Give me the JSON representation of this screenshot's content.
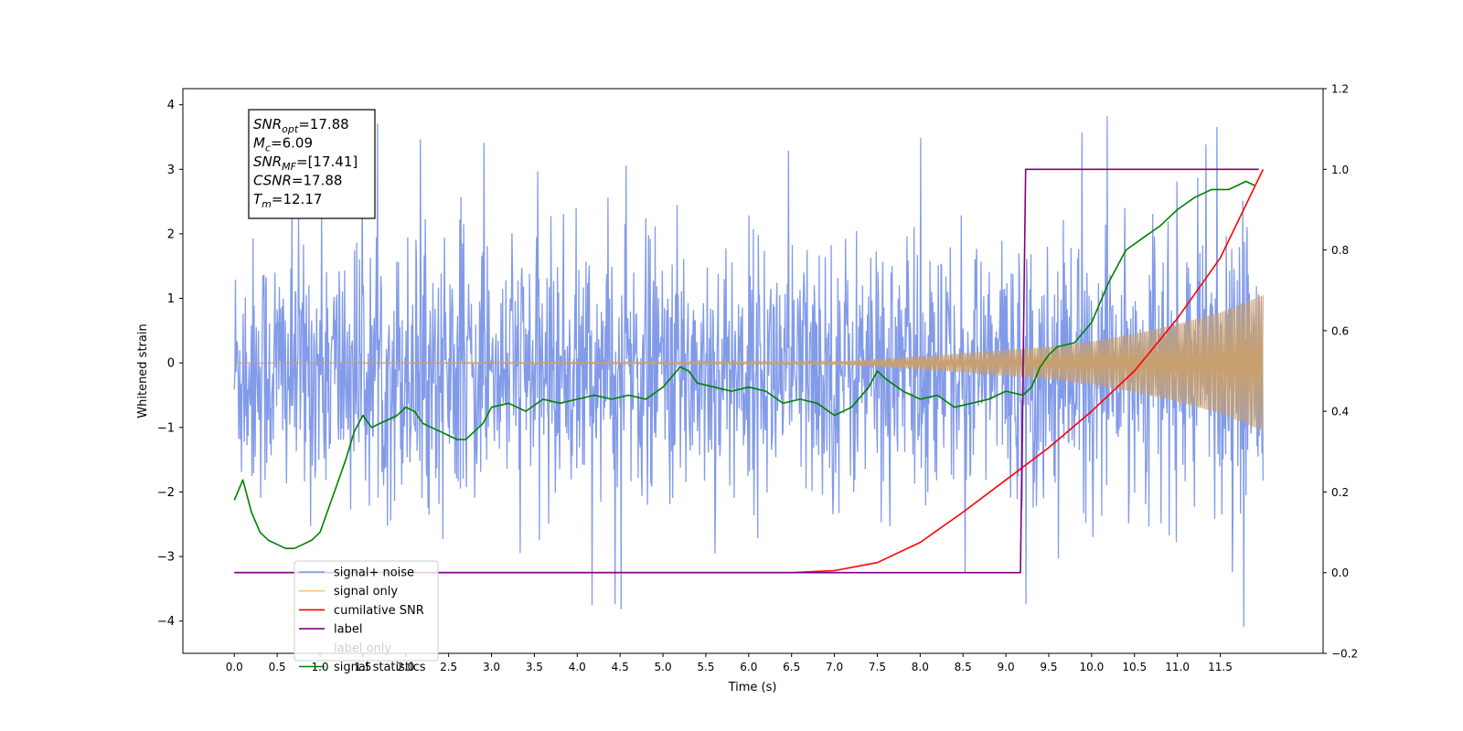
{
  "chart_data": {
    "type": "line",
    "title": "",
    "xlabel": "Time (s)",
    "ylabel": "Whitened strain",
    "y2label": "",
    "xlim": [
      -0.6,
      12.7
    ],
    "ylim": [
      -4.5,
      4.25
    ],
    "y2lim": [
      -0.2,
      1.2
    ],
    "xticks": [
      "0.0",
      "0.5",
      "1.0",
      "1.5",
      "2.0",
      "2.5",
      "3.0",
      "3.5",
      "4.0",
      "4.5",
      "5.0",
      "5.5",
      "6.0",
      "6.5",
      "7.0",
      "7.5",
      "8.0",
      "8.5",
      "9.0",
      "9.5",
      "10.0",
      "10.5",
      "11.0",
      "11.5"
    ],
    "yticks": [
      "4",
      "3",
      "2",
      "1",
      "0",
      "−1",
      "−2",
      "−3",
      "−4"
    ],
    "y2ticks": [
      "1.2",
      "1.0",
      "0.8",
      "0.6",
      "0.4",
      "0.2",
      "0.0",
      "−0.2"
    ],
    "grid": false,
    "legend_position": "lower-left",
    "annotation": {
      "lines": [
        {
          "base": "SNR",
          "sub": "opt",
          "value": "=17.88"
        },
        {
          "base": "M",
          "sub": "c",
          "value": "=6.09"
        },
        {
          "base": "SNR",
          "sub": "MF",
          "value": "=[17.41]"
        },
        {
          "base": "CSNR",
          "sub": "",
          "value": "=17.88"
        },
        {
          "base": "T",
          "sub": "m",
          "value": "=12.17"
        }
      ]
    },
    "legend": [
      {
        "name": "signal+ noise",
        "color": "#7b96e8"
      },
      {
        "name": "signal only",
        "color": "#f5c27a"
      },
      {
        "name": "cumilative SNR",
        "color": "#ff0000"
      },
      {
        "name": "label",
        "color": "#800080"
      },
      {
        "name": "label only",
        "color": "#800080",
        "hidden": true
      },
      {
        "name": "signal statistics",
        "color": "#008000"
      }
    ],
    "series": [
      {
        "name": "signal+ noise",
        "axis": "left",
        "color": "#7b96e8",
        "description_x_range": [
          0.0,
          12.0
        ],
        "envelope": {
          "typical_min": -2.6,
          "typical_max": 2.4,
          "extreme_min": -4.1,
          "extreme_max": 3.85
        }
      },
      {
        "name": "signal only",
        "axis": "left",
        "color": "#c8a070",
        "amplitude": {
          "x": [
            0.0,
            7.0,
            8.0,
            9.0,
            9.5,
            10.0,
            10.5,
            11.0,
            11.5,
            12.0
          ],
          "y": [
            0.0,
            0.02,
            0.1,
            0.2,
            0.25,
            0.33,
            0.45,
            0.6,
            0.78,
            1.05
          ]
        }
      },
      {
        "name": "cumilative SNR",
        "axis": "right",
        "color": "#ff0000",
        "x": [
          0.0,
          6.5,
          7.0,
          7.5,
          8.0,
          8.5,
          9.0,
          9.5,
          10.0,
          10.5,
          11.0,
          11.5,
          12.0
        ],
        "y": [
          0.0,
          0.0,
          0.005,
          0.025,
          0.075,
          0.15,
          0.23,
          0.31,
          0.4,
          0.5,
          0.63,
          0.78,
          1.0
        ]
      },
      {
        "name": "label",
        "axis": "right",
        "color": "#800080",
        "x": [
          0.0,
          9.17,
          9.23,
          11.95
        ],
        "y": [
          0.0,
          0.0,
          1.0,
          1.0
        ]
      },
      {
        "name": "signal statistics",
        "axis": "right",
        "color": "#008000",
        "x": [
          0.0,
          0.1,
          0.2,
          0.3,
          0.4,
          0.5,
          0.6,
          0.7,
          0.8,
          0.9,
          1.0,
          1.1,
          1.2,
          1.3,
          1.4,
          1.5,
          1.6,
          1.7,
          1.8,
          1.9,
          2.0,
          2.1,
          2.2,
          2.3,
          2.4,
          2.5,
          2.6,
          2.7,
          2.8,
          2.9,
          3.0,
          3.2,
          3.4,
          3.6,
          3.8,
          4.0,
          4.2,
          4.4,
          4.6,
          4.8,
          5.0,
          5.2,
          5.3,
          5.4,
          5.6,
          5.8,
          6.0,
          6.2,
          6.4,
          6.6,
          6.8,
          7.0,
          7.2,
          7.4,
          7.5,
          7.6,
          7.8,
          8.0,
          8.2,
          8.4,
          8.6,
          8.8,
          9.0,
          9.2,
          9.3,
          9.4,
          9.5,
          9.6,
          9.8,
          10.0,
          10.2,
          10.4,
          10.6,
          10.8,
          11.0,
          11.2,
          11.4,
          11.6,
          11.8,
          11.9
        ],
        "y": [
          0.18,
          0.23,
          0.15,
          0.1,
          0.08,
          0.07,
          0.06,
          0.06,
          0.07,
          0.08,
          0.1,
          0.16,
          0.22,
          0.28,
          0.35,
          0.39,
          0.36,
          0.37,
          0.38,
          0.39,
          0.41,
          0.4,
          0.37,
          0.36,
          0.35,
          0.34,
          0.33,
          0.33,
          0.35,
          0.37,
          0.41,
          0.42,
          0.4,
          0.43,
          0.42,
          0.43,
          0.44,
          0.43,
          0.44,
          0.43,
          0.46,
          0.51,
          0.5,
          0.47,
          0.46,
          0.45,
          0.46,
          0.45,
          0.42,
          0.43,
          0.42,
          0.39,
          0.41,
          0.46,
          0.5,
          0.48,
          0.45,
          0.43,
          0.44,
          0.41,
          0.42,
          0.43,
          0.45,
          0.44,
          0.46,
          0.51,
          0.54,
          0.56,
          0.57,
          0.62,
          0.72,
          0.8,
          0.83,
          0.86,
          0.9,
          0.93,
          0.95,
          0.95,
          0.97,
          0.96
        ]
      }
    ]
  }
}
